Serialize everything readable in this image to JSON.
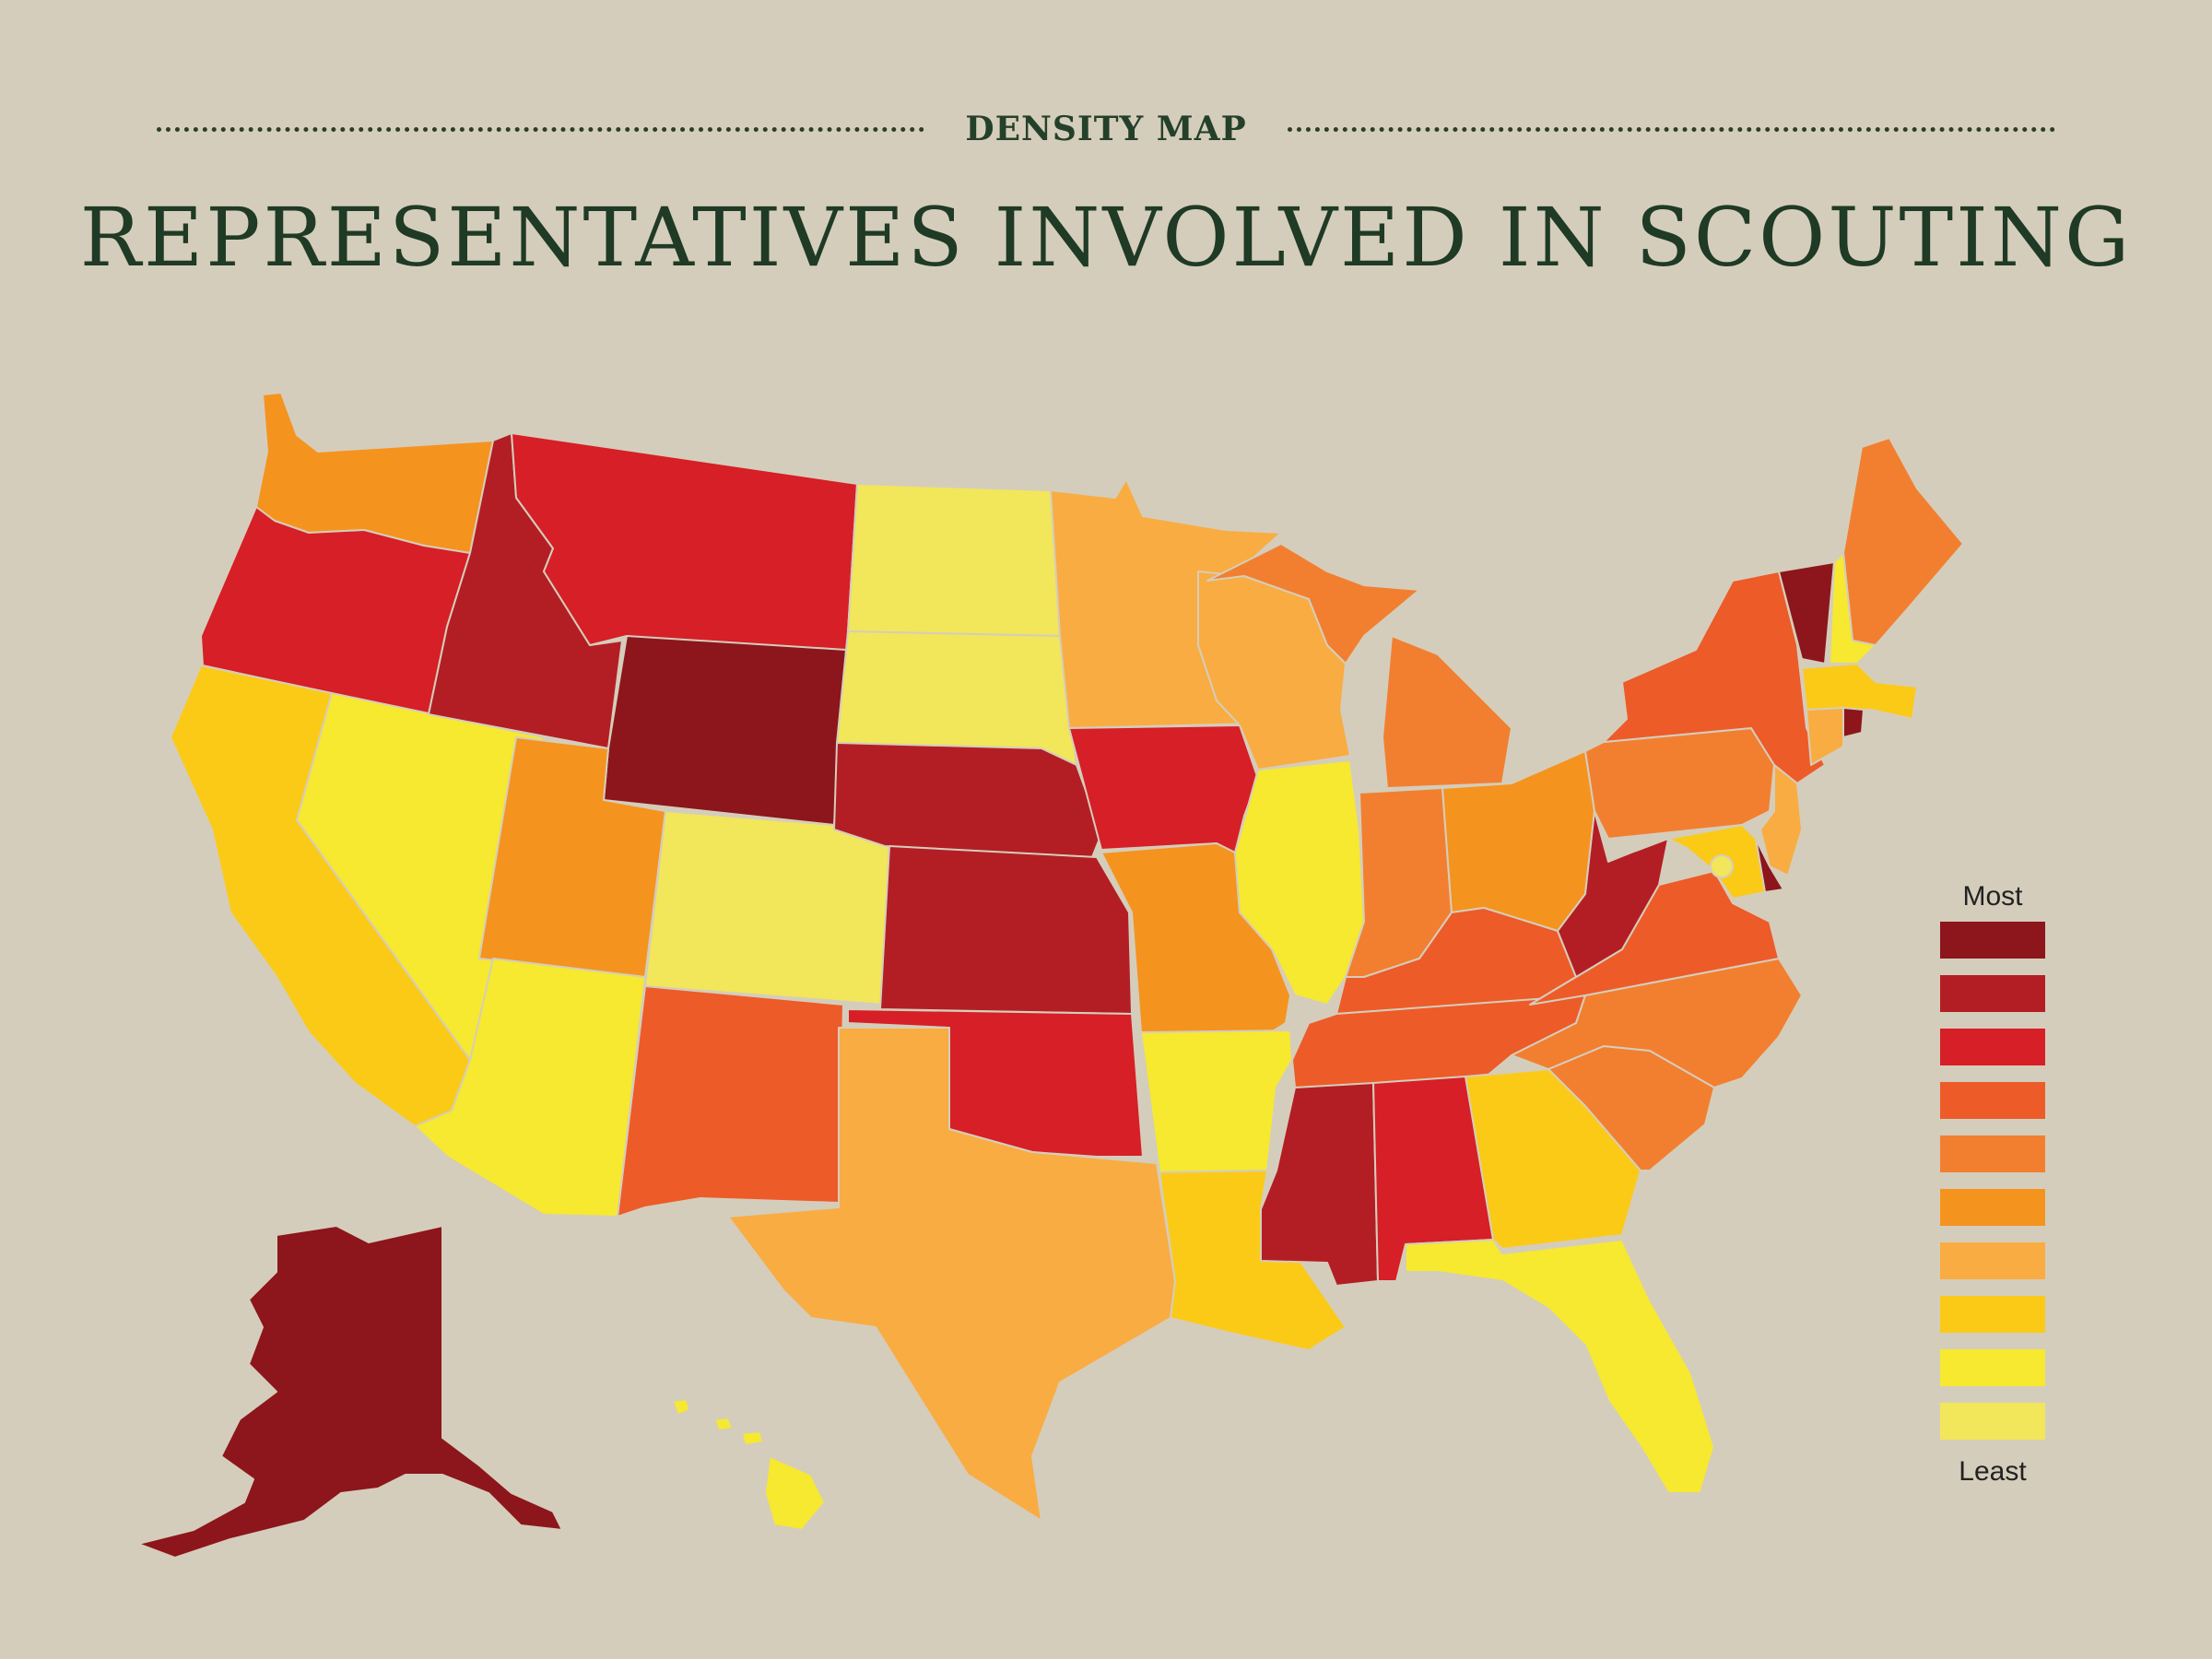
{
  "header": {
    "kicker": "DENSITY MAP",
    "title": "REPRESENTATIVES INVOLVED IN SCOUTING"
  },
  "legend": {
    "top_label": "Most",
    "bottom_label": "Least",
    "scale": [
      "#8c161b",
      "#b31e24",
      "#d61f26",
      "#ed5b29",
      "#f27f30",
      "#f5931f",
      "#f9ac42",
      "#fbca17",
      "#f6e92f",
      "#f2e65a"
    ]
  },
  "states": [
    {
      "name": "WA",
      "level": 6
    },
    {
      "name": "OR",
      "level": 3
    },
    {
      "name": "CA",
      "level": 8
    },
    {
      "name": "NV",
      "level": 9
    },
    {
      "name": "ID",
      "level": 2
    },
    {
      "name": "MT",
      "level": 3
    },
    {
      "name": "WY",
      "level": 1
    },
    {
      "name": "UT",
      "level": 6
    },
    {
      "name": "AZ",
      "level": 9
    },
    {
      "name": "CO",
      "level": 10
    },
    {
      "name": "NM",
      "level": 4
    },
    {
      "name": "ND",
      "level": 10
    },
    {
      "name": "SD",
      "level": 10
    },
    {
      "name": "NE",
      "level": 2
    },
    {
      "name": "KS",
      "level": 2
    },
    {
      "name": "OK",
      "level": 3
    },
    {
      "name": "TX",
      "level": 7
    },
    {
      "name": "MN",
      "level": 7
    },
    {
      "name": "IA",
      "level": 3
    },
    {
      "name": "MO",
      "level": 6
    },
    {
      "name": "AR",
      "level": 9
    },
    {
      "name": "LA",
      "level": 8
    },
    {
      "name": "WI",
      "level": 7
    },
    {
      "name": "IL",
      "level": 9
    },
    {
      "name": "MI",
      "level": 5
    },
    {
      "name": "IN",
      "level": 5
    },
    {
      "name": "OH",
      "level": 6
    },
    {
      "name": "KY",
      "level": 4
    },
    {
      "name": "TN",
      "level": 4
    },
    {
      "name": "MS",
      "level": 2
    },
    {
      "name": "AL",
      "level": 3
    },
    {
      "name": "GA",
      "level": 8
    },
    {
      "name": "FL",
      "level": 9
    },
    {
      "name": "SC",
      "level": 5
    },
    {
      "name": "NC",
      "level": 5
    },
    {
      "name": "VA",
      "level": 4
    },
    {
      "name": "WV",
      "level": 2
    },
    {
      "name": "PA",
      "level": 5
    },
    {
      "name": "NY",
      "level": 4
    },
    {
      "name": "ME",
      "level": 5
    },
    {
      "name": "VT",
      "level": 1
    },
    {
      "name": "NH",
      "level": 9
    },
    {
      "name": "MA",
      "level": 8
    },
    {
      "name": "CT",
      "level": 7
    },
    {
      "name": "RI",
      "level": 1
    },
    {
      "name": "NJ",
      "level": 7
    },
    {
      "name": "DE",
      "level": 1
    },
    {
      "name": "MD",
      "level": 8
    },
    {
      "name": "DC",
      "level": 10
    },
    {
      "name": "AK",
      "level": 1
    },
    {
      "name": "HI",
      "level": 9
    }
  ]
}
